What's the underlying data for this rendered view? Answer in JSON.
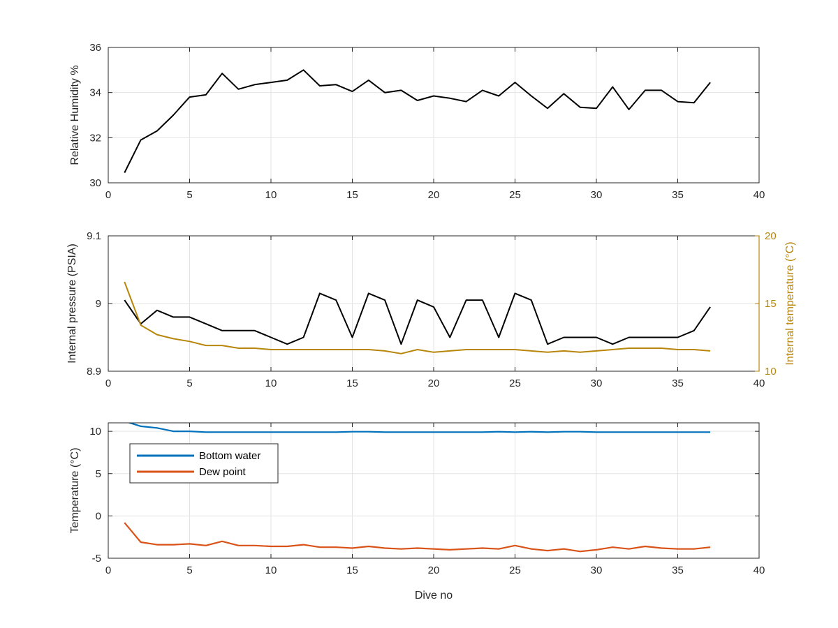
{
  "chart_data": [
    {
      "type": "line",
      "title": "",
      "xlabel": "",
      "ylabel": "Relative Humidity %",
      "xlim": [
        0,
        40
      ],
      "ylim": [
        30,
        36
      ],
      "xticks": [
        0,
        5,
        10,
        15,
        20,
        25,
        30,
        35,
        40
      ],
      "yticks": [
        30,
        32,
        34,
        36
      ],
      "grid": true,
      "legend": null,
      "x": [
        1,
        2,
        3,
        4,
        5,
        6,
        7,
        8,
        9,
        10,
        11,
        12,
        13,
        14,
        15,
        16,
        17,
        18,
        19,
        20,
        21,
        22,
        23,
        24,
        25,
        26,
        27,
        28,
        29,
        30,
        31,
        32,
        33,
        34,
        35,
        36,
        37
      ],
      "series": [
        {
          "color": "#000000",
          "axis": "left",
          "values": [
            30.45,
            31.9,
            32.3,
            33.0,
            33.8,
            33.9,
            34.85,
            34.15,
            34.35,
            34.45,
            34.55,
            35.0,
            34.3,
            34.35,
            34.05,
            34.55,
            34.0,
            34.1,
            33.65,
            33.85,
            33.75,
            33.6,
            34.1,
            33.85,
            34.45,
            33.85,
            33.3,
            33.95,
            33.35,
            33.3,
            34.25,
            33.25,
            34.1,
            34.1,
            33.6,
            33.55,
            34.45
          ]
        }
      ]
    },
    {
      "type": "line",
      "title": "",
      "xlabel": "",
      "ylabel": "Internal pressure (PSIA)",
      "ylabel_right": "Internal temperature (°C)",
      "right_axis_color": "#b8860b",
      "xlim": [
        0,
        40
      ],
      "ylim": [
        8.9,
        9.1
      ],
      "ylim_right": [
        10,
        20
      ],
      "xticks": [
        0,
        5,
        10,
        15,
        20,
        25,
        30,
        35,
        40
      ],
      "yticks": [
        8.9,
        9,
        9.1
      ],
      "yticks_right": [
        10,
        15,
        20
      ],
      "ytick_labels": [
        "8.9",
        "9",
        "9.1"
      ],
      "grid": true,
      "legend": null,
      "x": [
        1,
        2,
        3,
        4,
        5,
        6,
        7,
        8,
        9,
        10,
        11,
        12,
        13,
        14,
        15,
        16,
        17,
        18,
        19,
        20,
        21,
        22,
        23,
        24,
        25,
        26,
        27,
        28,
        29,
        30,
        31,
        32,
        33,
        34,
        35,
        36,
        37
      ],
      "series": [
        {
          "color": "#000000",
          "axis": "left",
          "values": [
            9.005,
            8.97,
            8.99,
            8.98,
            8.98,
            8.97,
            8.96,
            8.96,
            8.96,
            8.95,
            8.94,
            8.95,
            9.015,
            9.005,
            8.95,
            9.015,
            9.005,
            8.94,
            9.005,
            8.995,
            8.95,
            9.005,
            9.005,
            8.95,
            9.015,
            9.005,
            8.94,
            8.95,
            8.95,
            8.95,
            8.94,
            8.95,
            8.95,
            8.95,
            8.95,
            8.96,
            8.995
          ]
        },
        {
          "color": "#b8860b",
          "axis": "right",
          "values": [
            16.6,
            13.4,
            12.7,
            12.4,
            12.2,
            11.9,
            11.9,
            11.7,
            11.7,
            11.6,
            11.6,
            11.6,
            11.6,
            11.6,
            11.6,
            11.6,
            11.5,
            11.3,
            11.6,
            11.4,
            11.5,
            11.6,
            11.6,
            11.6,
            11.6,
            11.5,
            11.4,
            11.5,
            11.4,
            11.5,
            11.6,
            11.7,
            11.7,
            11.7,
            11.6,
            11.6,
            11.5
          ]
        }
      ]
    },
    {
      "type": "line",
      "title": "",
      "xlabel": "Dive no",
      "ylabel": "Temperature (°C)",
      "xlim": [
        0,
        40
      ],
      "ylim": [
        -5,
        11
      ],
      "xticks": [
        0,
        5,
        10,
        15,
        20,
        25,
        30,
        35,
        40
      ],
      "yticks": [
        -5,
        0,
        5,
        10
      ],
      "grid": true,
      "legend": "top-left",
      "x": [
        1,
        2,
        3,
        4,
        5,
        6,
        7,
        8,
        9,
        10,
        11,
        12,
        13,
        14,
        15,
        16,
        17,
        18,
        19,
        20,
        21,
        22,
        23,
        24,
        25,
        26,
        27,
        28,
        29,
        30,
        31,
        32,
        33,
        34,
        35,
        36,
        37
      ],
      "series": [
        {
          "name": "Bottom water",
          "color": "#0072bd",
          "axis": "left",
          "values": [
            11.2,
            10.6,
            10.4,
            10.0,
            10.0,
            9.9,
            9.9,
            9.9,
            9.9,
            9.9,
            9.9,
            9.9,
            9.9,
            9.9,
            9.95,
            9.95,
            9.9,
            9.9,
            9.9,
            9.9,
            9.9,
            9.9,
            9.9,
            9.95,
            9.9,
            9.95,
            9.9,
            9.95,
            9.95,
            9.9,
            9.9,
            9.9,
            9.9,
            9.9,
            9.9,
            9.9,
            9.9
          ]
        },
        {
          "name": "Dew point",
          "color": "#d95319",
          "axis": "left",
          "values": [
            -0.8,
            -3.1,
            -3.4,
            -3.4,
            -3.3,
            -3.5,
            -3.0,
            -3.5,
            -3.5,
            -3.6,
            -3.6,
            -3.4,
            -3.7,
            -3.7,
            -3.8,
            -3.6,
            -3.8,
            -3.9,
            -3.8,
            -3.9,
            -4.0,
            -3.9,
            -3.8,
            -3.9,
            -3.5,
            -3.9,
            -4.1,
            -3.9,
            -4.2,
            -4.0,
            -3.7,
            -3.9,
            -3.6,
            -3.8,
            -3.9,
            -3.9,
            -3.7
          ]
        }
      ]
    }
  ]
}
